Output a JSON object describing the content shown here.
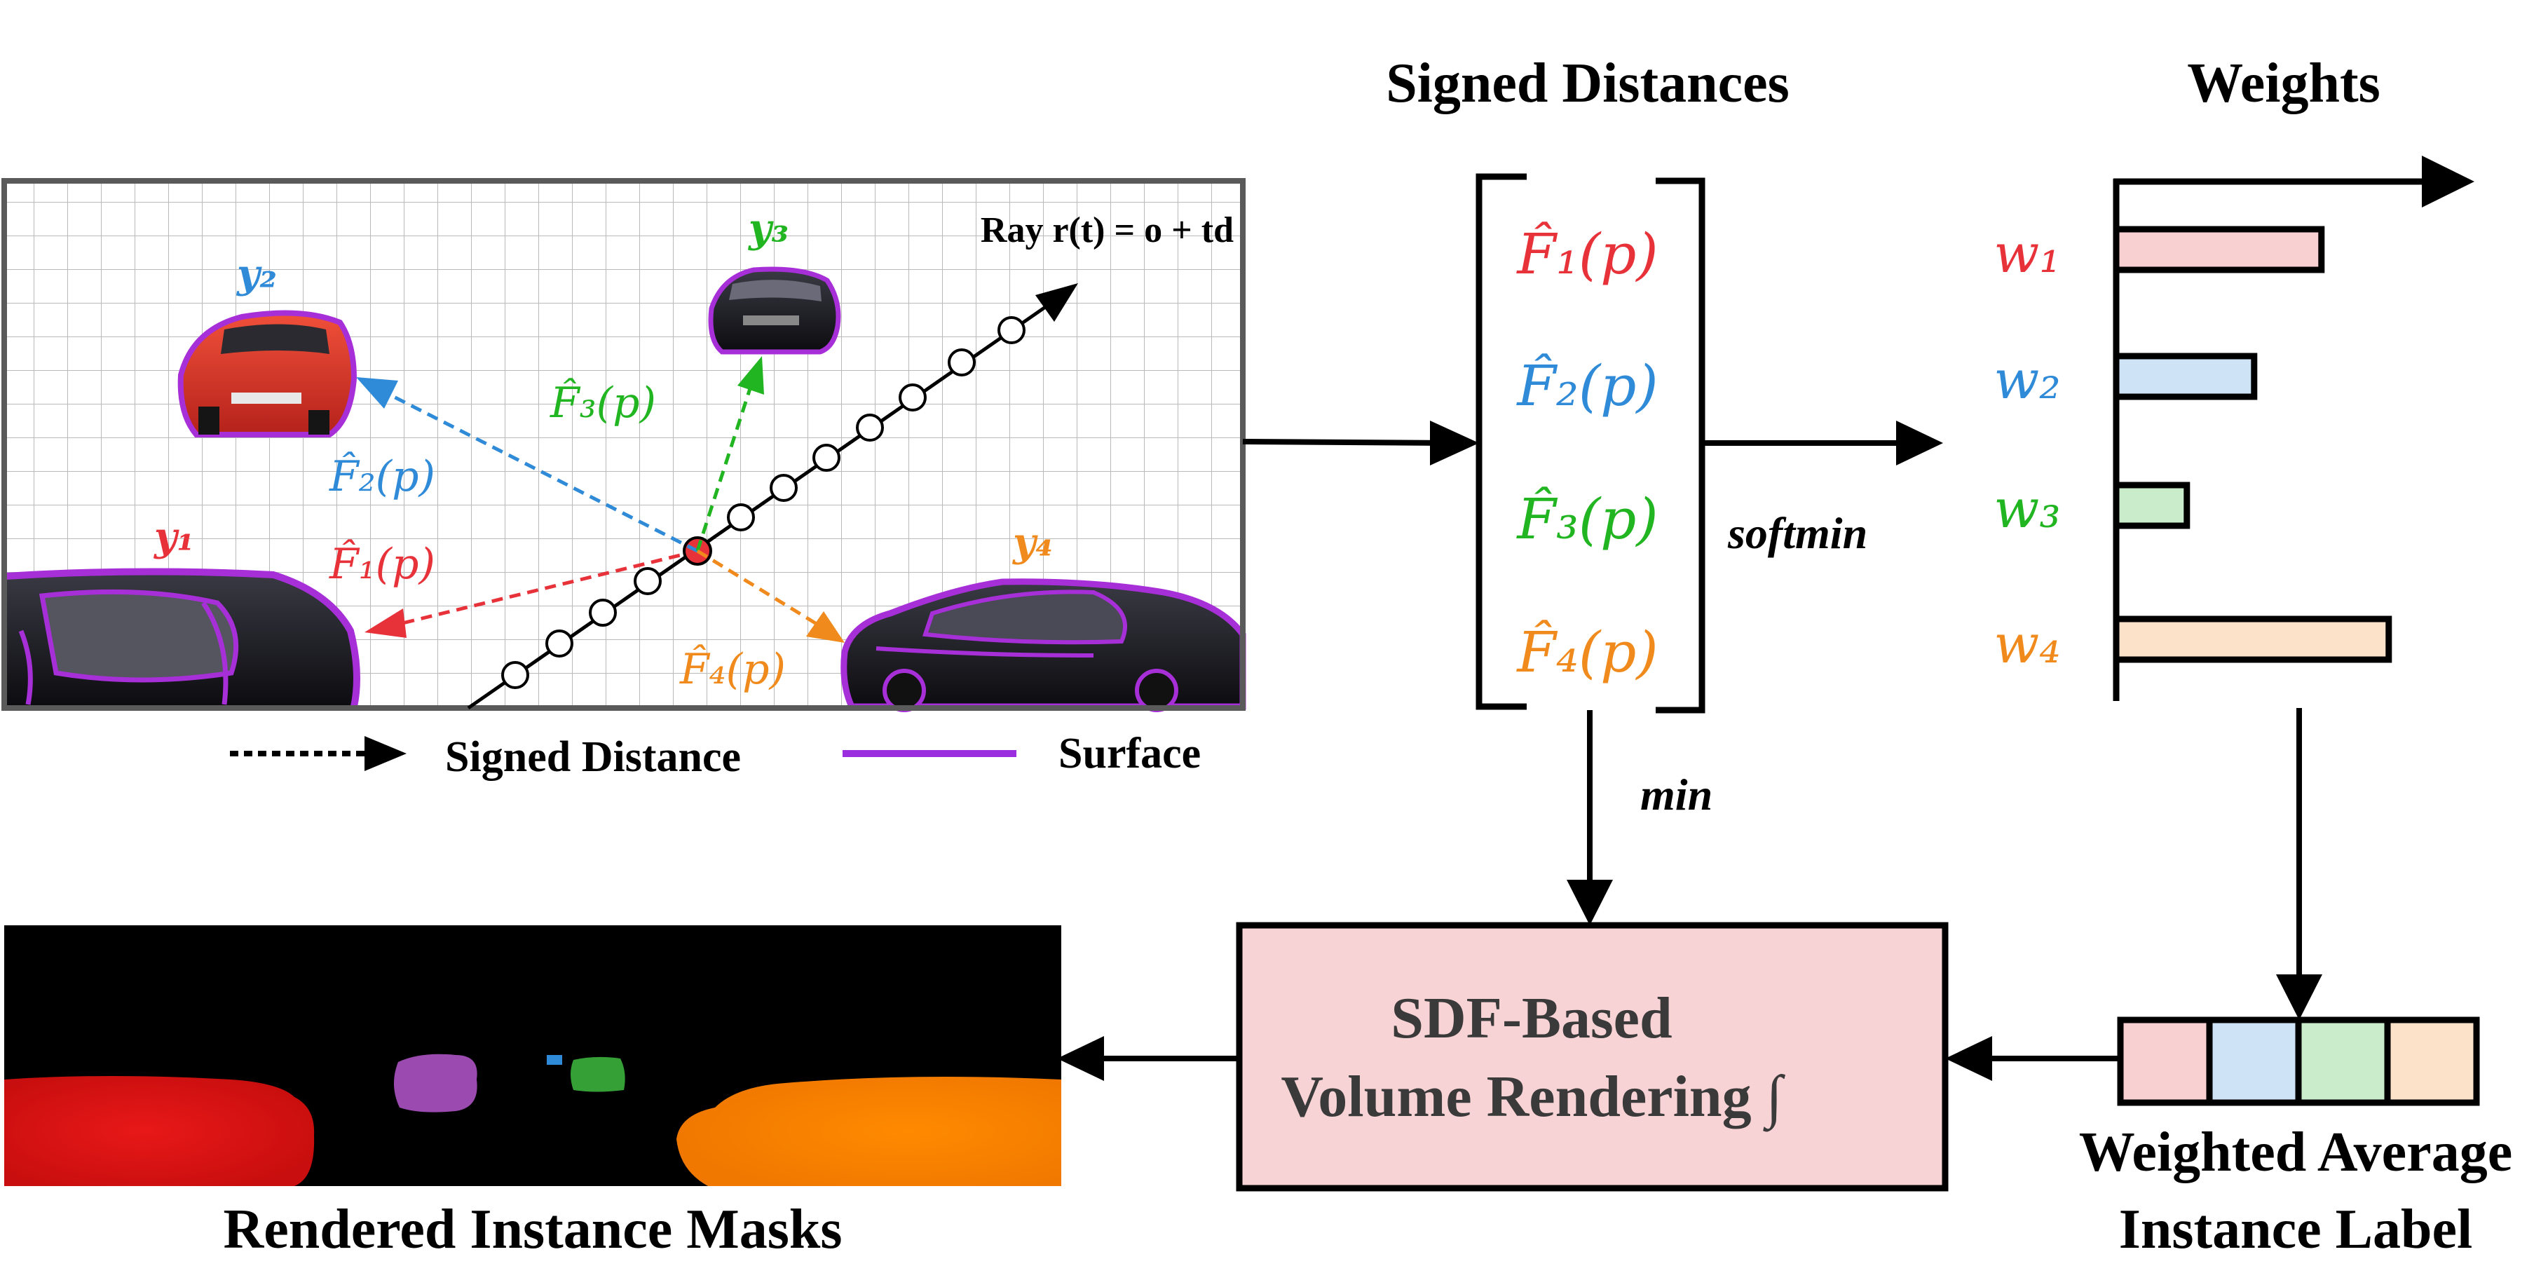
{
  "titles": {
    "signed_distances": "Signed Distances",
    "weights": "Weights"
  },
  "ray_label": "Ray r(t) = o + td",
  "instances": {
    "y1": "y₁",
    "y2": "y₂",
    "y3": "y₃",
    "y4": "y₄"
  },
  "scene_sdf_labels": {
    "f1": "F̂₁(p)",
    "f2": "F̂₂(p)",
    "f3": "F̂₃(p)",
    "f4": "F̂₄(p)"
  },
  "vector_entries": [
    "F̂₁(p)",
    "F̂₂(p)",
    "F̂₃(p)",
    "F̂₄(p)"
  ],
  "weight_labels": [
    "w₁",
    "w₂",
    "w₃",
    "w₄"
  ],
  "weights_bar": [
    0.61,
    0.41,
    0.21,
    0.81
  ],
  "colors": {
    "red": "#e8323a",
    "blue": "#2f8ad8",
    "green": "#22b522",
    "orange": "#f08a1c",
    "purple": "#9b2fe0",
    "fill_red": "#f9d0d2",
    "fill_blue": "#cfe3f7",
    "fill_green": "#cbeccb",
    "fill_orange": "#fbe2c8",
    "box_fill": "#f8d3d5"
  },
  "edge_labels": {
    "softmin": "softmin",
    "min": "min"
  },
  "legend": {
    "signed_distance": "Signed Distance",
    "surface": "Surface"
  },
  "render_box": {
    "line1": "SDF-Based",
    "line2": "Volume Rendering ∫"
  },
  "weighted_avg": {
    "line1": "Weighted Average",
    "line2": "Instance Label"
  },
  "masks_caption": "Rendered Instance Masks"
}
